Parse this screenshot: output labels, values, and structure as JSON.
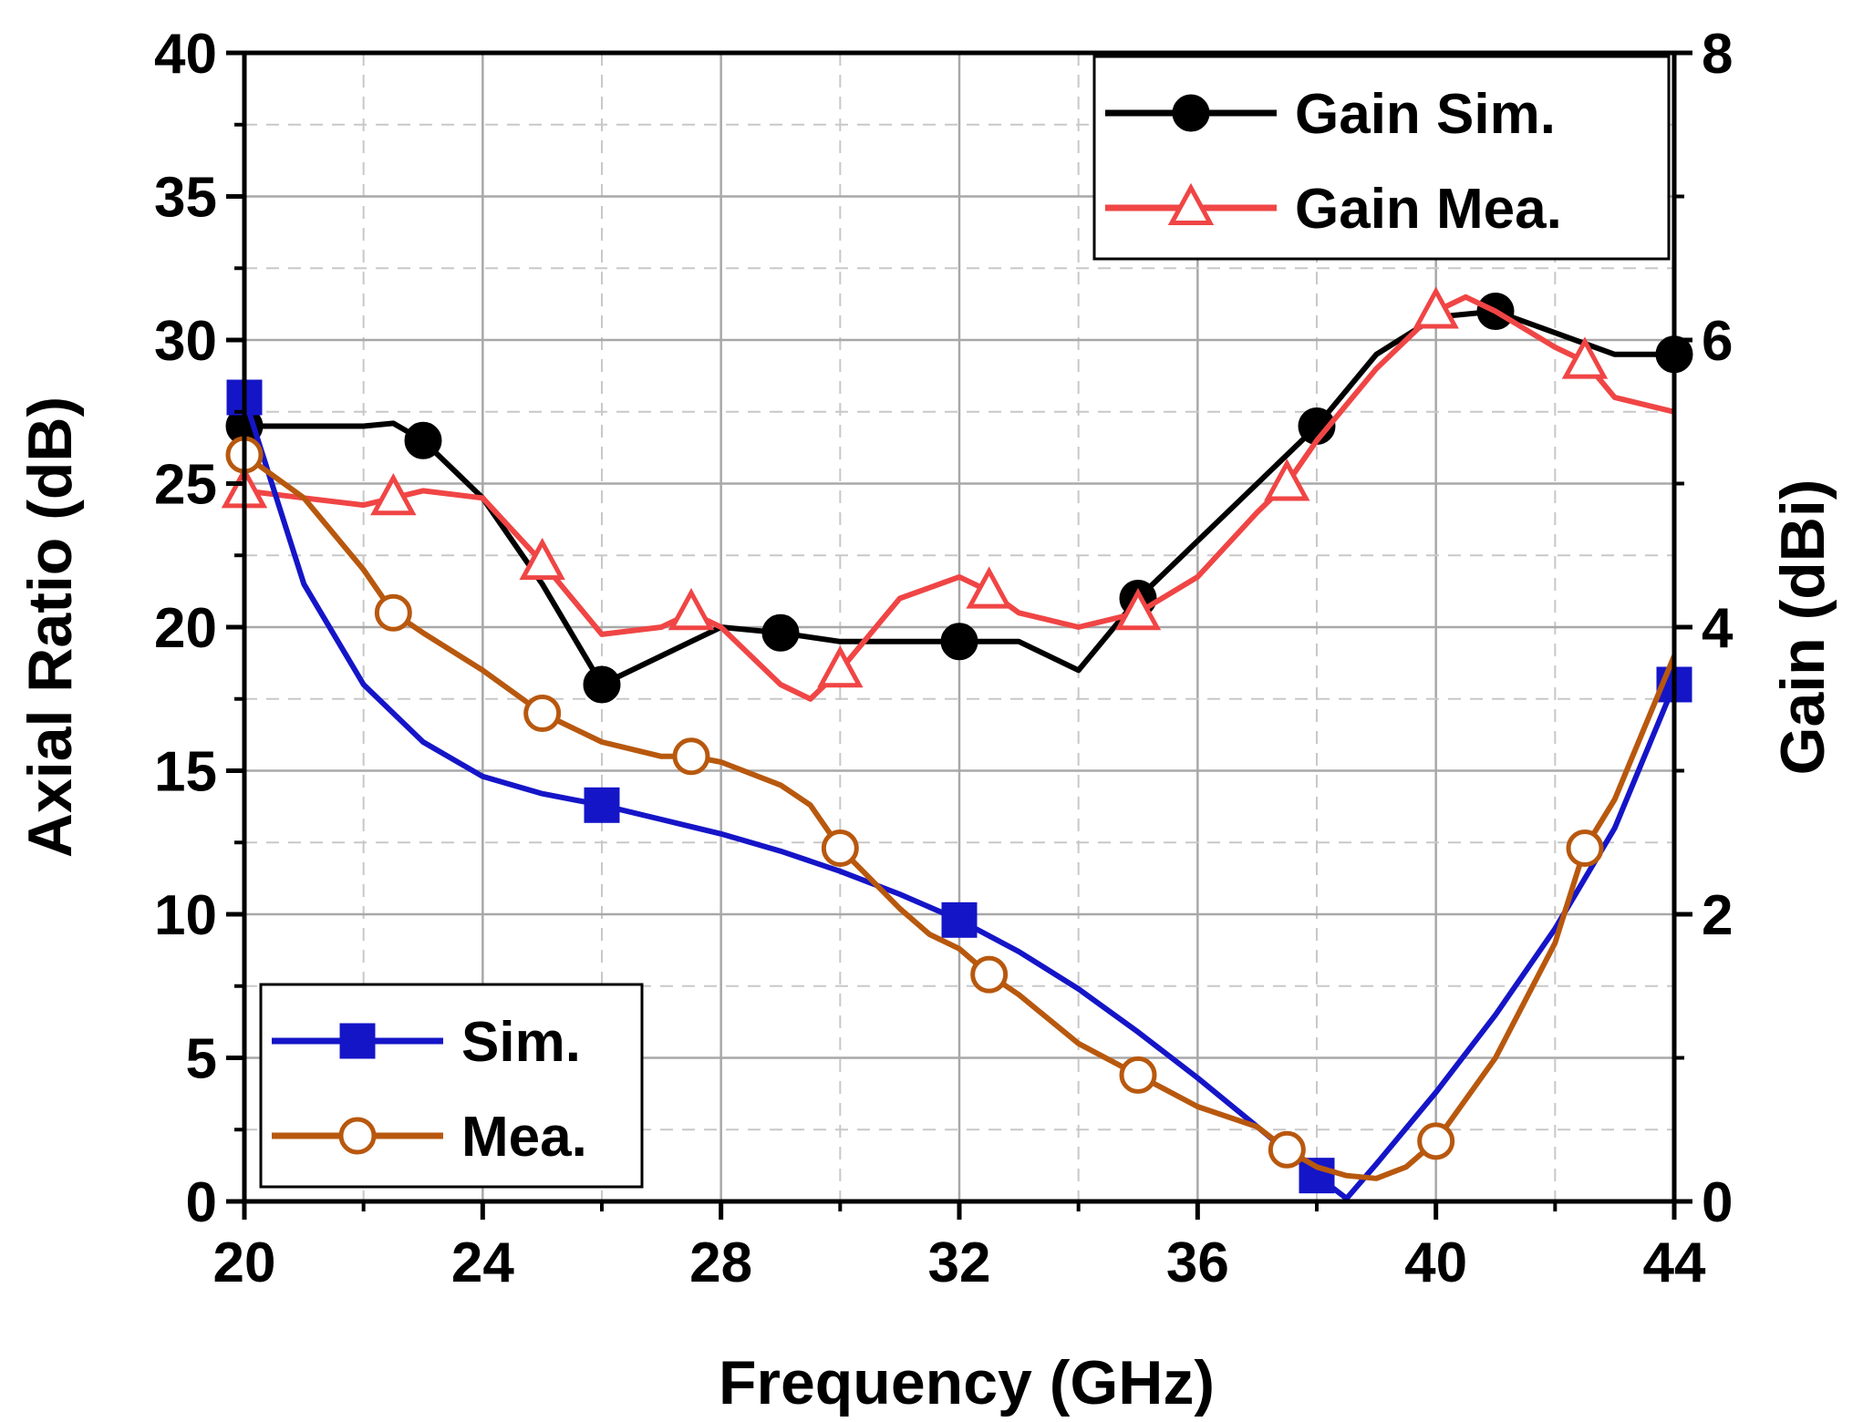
{
  "chart_data": {
    "type": "line",
    "xlabel": "Frequency (GHz)",
    "ylabel_left": "Axial Ratio (dB)",
    "ylabel_right": "Gain (dBi)",
    "xlim": [
      20,
      44
    ],
    "ylim_left": [
      0,
      40
    ],
    "ylim_right": [
      0,
      8
    ],
    "x_ticks": [
      20,
      24,
      28,
      32,
      36,
      40,
      44
    ],
    "y_left_ticks": [
      0,
      5,
      10,
      15,
      20,
      25,
      30,
      35,
      40
    ],
    "y_right_ticks": [
      0,
      2,
      4,
      6,
      8
    ],
    "grid": true,
    "series": [
      {
        "name": "Gain Sim.",
        "axis": "right",
        "color": "#000000",
        "marker": "filled-circle",
        "x": [
          20,
          21,
          22,
          22.5,
          23,
          24,
          25,
          26,
          27,
          28,
          29,
          30,
          31,
          32,
          33,
          34,
          35,
          36,
          37,
          38,
          39,
          40,
          41,
          42,
          43,
          44
        ],
        "y": [
          5.4,
          5.4,
          5.4,
          5.42,
          5.3,
          4.9,
          4.3,
          3.6,
          3.8,
          4.0,
          3.96,
          3.9,
          3.9,
          3.9,
          3.9,
          3.7,
          4.2,
          4.6,
          5.0,
          5.4,
          5.9,
          6.16,
          6.2,
          6.05,
          5.9,
          5.9
        ],
        "marker_x": [
          20,
          23,
          26,
          29,
          32,
          35,
          38,
          41,
          44
        ]
      },
      {
        "name": "Gain Mea.",
        "axis": "right",
        "color": "#f04545",
        "marker": "open-triangle",
        "x": [
          20,
          21,
          22,
          22.5,
          23,
          24,
          25,
          26,
          27,
          27.5,
          28,
          29,
          29.5,
          30,
          31,
          32,
          32.5,
          33,
          34,
          35,
          36,
          37,
          37.5,
          38,
          39,
          40,
          40.5,
          41,
          42,
          42.5,
          43,
          44
        ],
        "y": [
          4.95,
          4.9,
          4.85,
          4.9,
          4.95,
          4.9,
          4.45,
          3.95,
          4.0,
          4.1,
          4.0,
          3.6,
          3.5,
          3.7,
          4.2,
          4.35,
          4.25,
          4.1,
          4.0,
          4.1,
          4.35,
          4.8,
          5.0,
          5.3,
          5.8,
          6.2,
          6.3,
          6.2,
          5.95,
          5.85,
          5.6,
          5.5
        ],
        "marker_x": [
          20,
          22.5,
          25,
          27.5,
          30,
          32.5,
          35,
          37.5,
          40,
          42.5
        ]
      },
      {
        "name": "Sim.",
        "axis": "left",
        "color": "#1515c8",
        "marker": "filled-square",
        "x": [
          20,
          21,
          22,
          23,
          24,
          25,
          26,
          27,
          28,
          29,
          30,
          31,
          32,
          33,
          34,
          35,
          36,
          37,
          38,
          38.5,
          39,
          40,
          41,
          42,
          43,
          44
        ],
        "y": [
          28,
          21.5,
          18,
          16,
          14.8,
          14.2,
          13.8,
          13.3,
          12.8,
          12.2,
          11.5,
          10.7,
          9.8,
          8.7,
          7.4,
          5.9,
          4.3,
          2.6,
          0.9,
          0.1,
          1.3,
          3.8,
          6.5,
          9.5,
          13.0,
          18.0
        ],
        "marker_x": [
          20,
          26,
          32,
          38,
          44
        ]
      },
      {
        "name": "Mea.",
        "axis": "left",
        "color": "#b8580e",
        "marker": "open-circle",
        "x": [
          20,
          21,
          22,
          22.5,
          23,
          24,
          25,
          26,
          27,
          27.5,
          28,
          29,
          29.5,
          30,
          31,
          31.5,
          32,
          32.5,
          33,
          34,
          35,
          36,
          37,
          37.5,
          38,
          38.5,
          39,
          39.5,
          40,
          41,
          42,
          42.5,
          43,
          44
        ],
        "y": [
          26,
          24.5,
          22,
          20.5,
          19.8,
          18.5,
          17,
          16,
          15.5,
          15.5,
          15.3,
          14.5,
          13.8,
          12.3,
          10.2,
          9.3,
          8.8,
          7.9,
          7.2,
          5.5,
          4.4,
          3.3,
          2.6,
          1.8,
          1.2,
          0.9,
          0.8,
          1.2,
          2.1,
          5.0,
          9.0,
          12.3,
          14.0,
          19.0
        ],
        "marker_x": [
          20,
          22.5,
          25,
          27.5,
          30,
          32.5,
          35,
          37.5,
          40,
          42.5
        ]
      }
    ],
    "legends": [
      {
        "placement": "top-right",
        "entries": [
          "Gain Sim.",
          "Gain Mea."
        ]
      },
      {
        "placement": "bottom-left",
        "entries": [
          "Sim.",
          "Mea."
        ]
      }
    ]
  }
}
